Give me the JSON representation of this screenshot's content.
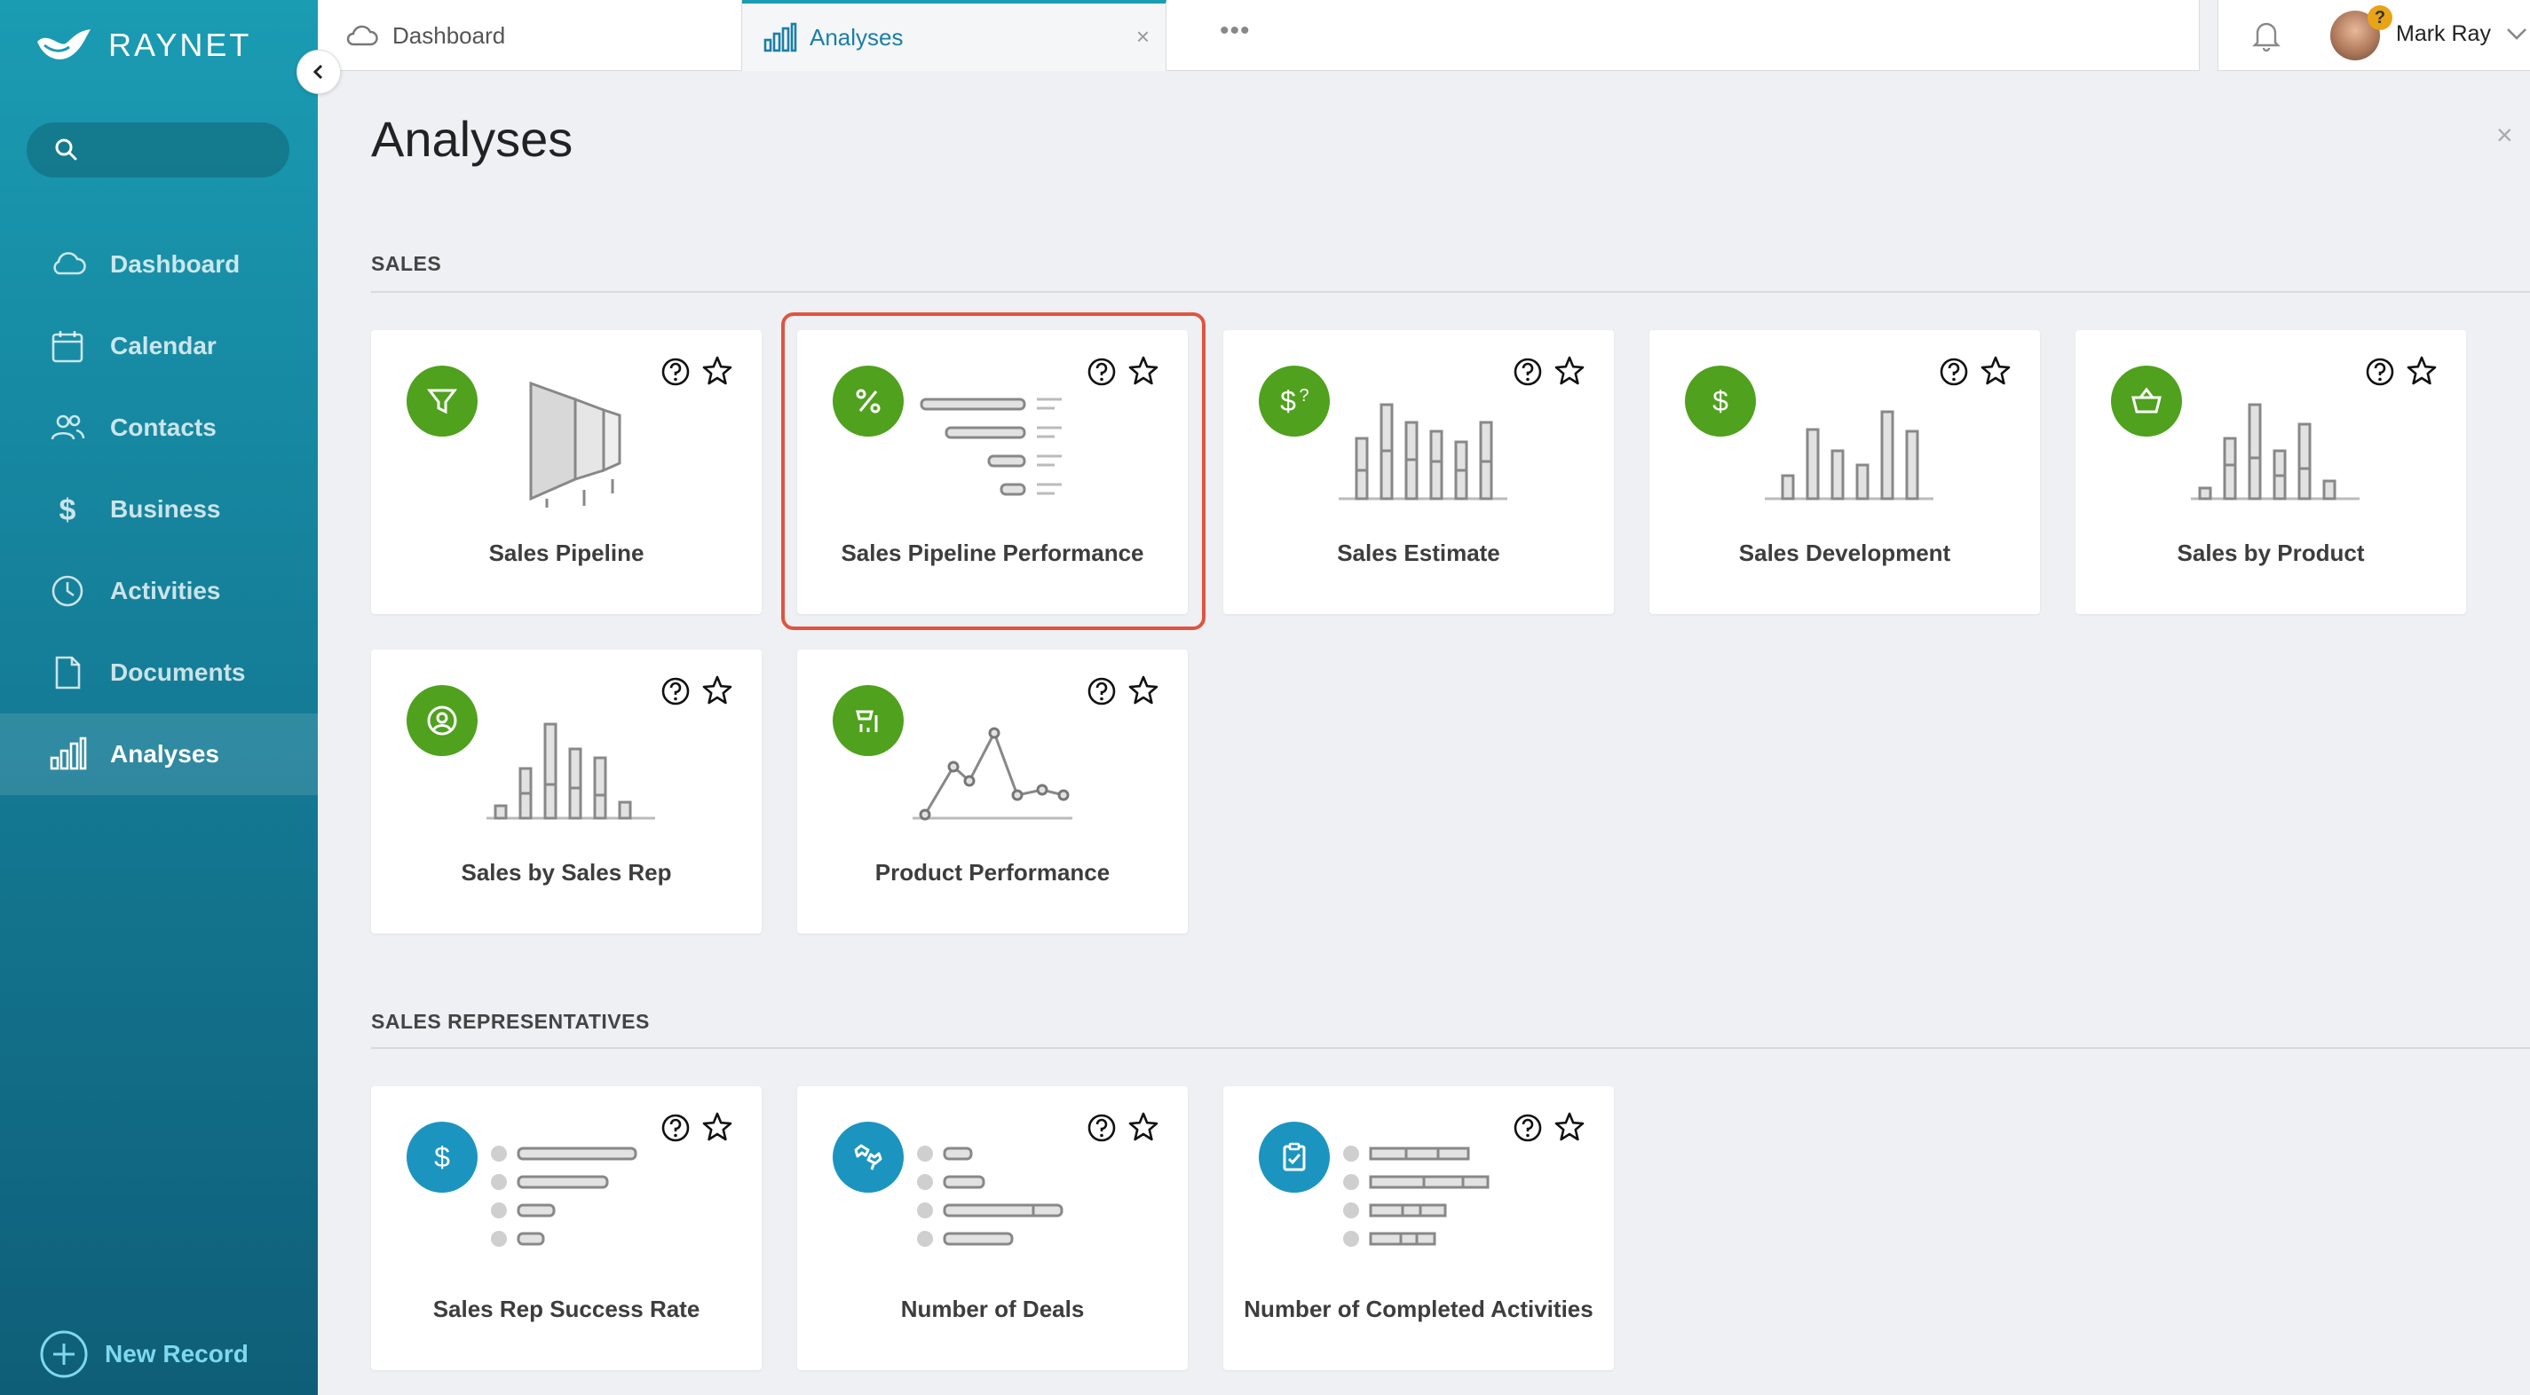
{
  "brand": {
    "name": "RAYNET"
  },
  "sidebar": {
    "items": [
      {
        "label": "Dashboard",
        "icon": "cloud-icon"
      },
      {
        "label": "Calendar",
        "icon": "calendar-icon"
      },
      {
        "label": "Contacts",
        "icon": "contacts-icon"
      },
      {
        "label": "Business",
        "icon": "dollar-icon"
      },
      {
        "label": "Activities",
        "icon": "clock-icon"
      },
      {
        "label": "Documents",
        "icon": "document-icon"
      },
      {
        "label": "Analyses",
        "icon": "bar-chart-icon",
        "active": true
      }
    ],
    "new_record": "New Record"
  },
  "tabs": [
    {
      "label": "Dashboard",
      "icon": "cloud-icon"
    },
    {
      "label": "Analyses",
      "icon": "bar-chart-icon",
      "active": true,
      "close": "×"
    }
  ],
  "tabs_more": "•••",
  "user": {
    "name": "Mark Ray",
    "badge": "?"
  },
  "page": {
    "title": "Analyses",
    "close": "×"
  },
  "sections": [
    {
      "title": "SALES",
      "cards": [
        {
          "label": "Sales Pipeline",
          "icon": "funnel-icon"
        },
        {
          "label": "Sales Pipeline Performance",
          "icon": "percent-icon",
          "highlighted": true
        },
        {
          "label": "Sales Estimate",
          "icon": "dollar-question-icon"
        },
        {
          "label": "Sales Development",
          "icon": "dollar-icon"
        },
        {
          "label": "Sales by Product",
          "icon": "basket-icon"
        },
        {
          "label": "Sales by Sales Rep",
          "icon": "user-circle-icon"
        },
        {
          "label": "Product Performance",
          "icon": "product-chart-icon"
        }
      ]
    },
    {
      "title": "SALES REPRESENTATIVES",
      "cards": [
        {
          "label": "Sales Rep Success Rate",
          "icon": "dollar-icon"
        },
        {
          "label": "Number of Deals",
          "icon": "handshake-icon"
        },
        {
          "label": "Number of Completed Activities",
          "icon": "clipboard-check-icon"
        }
      ]
    }
  ],
  "colors": {
    "accent": "#1a9cb3",
    "green": "#4fa11e",
    "blue": "#1b95c0",
    "highlight": "#e0543f"
  }
}
